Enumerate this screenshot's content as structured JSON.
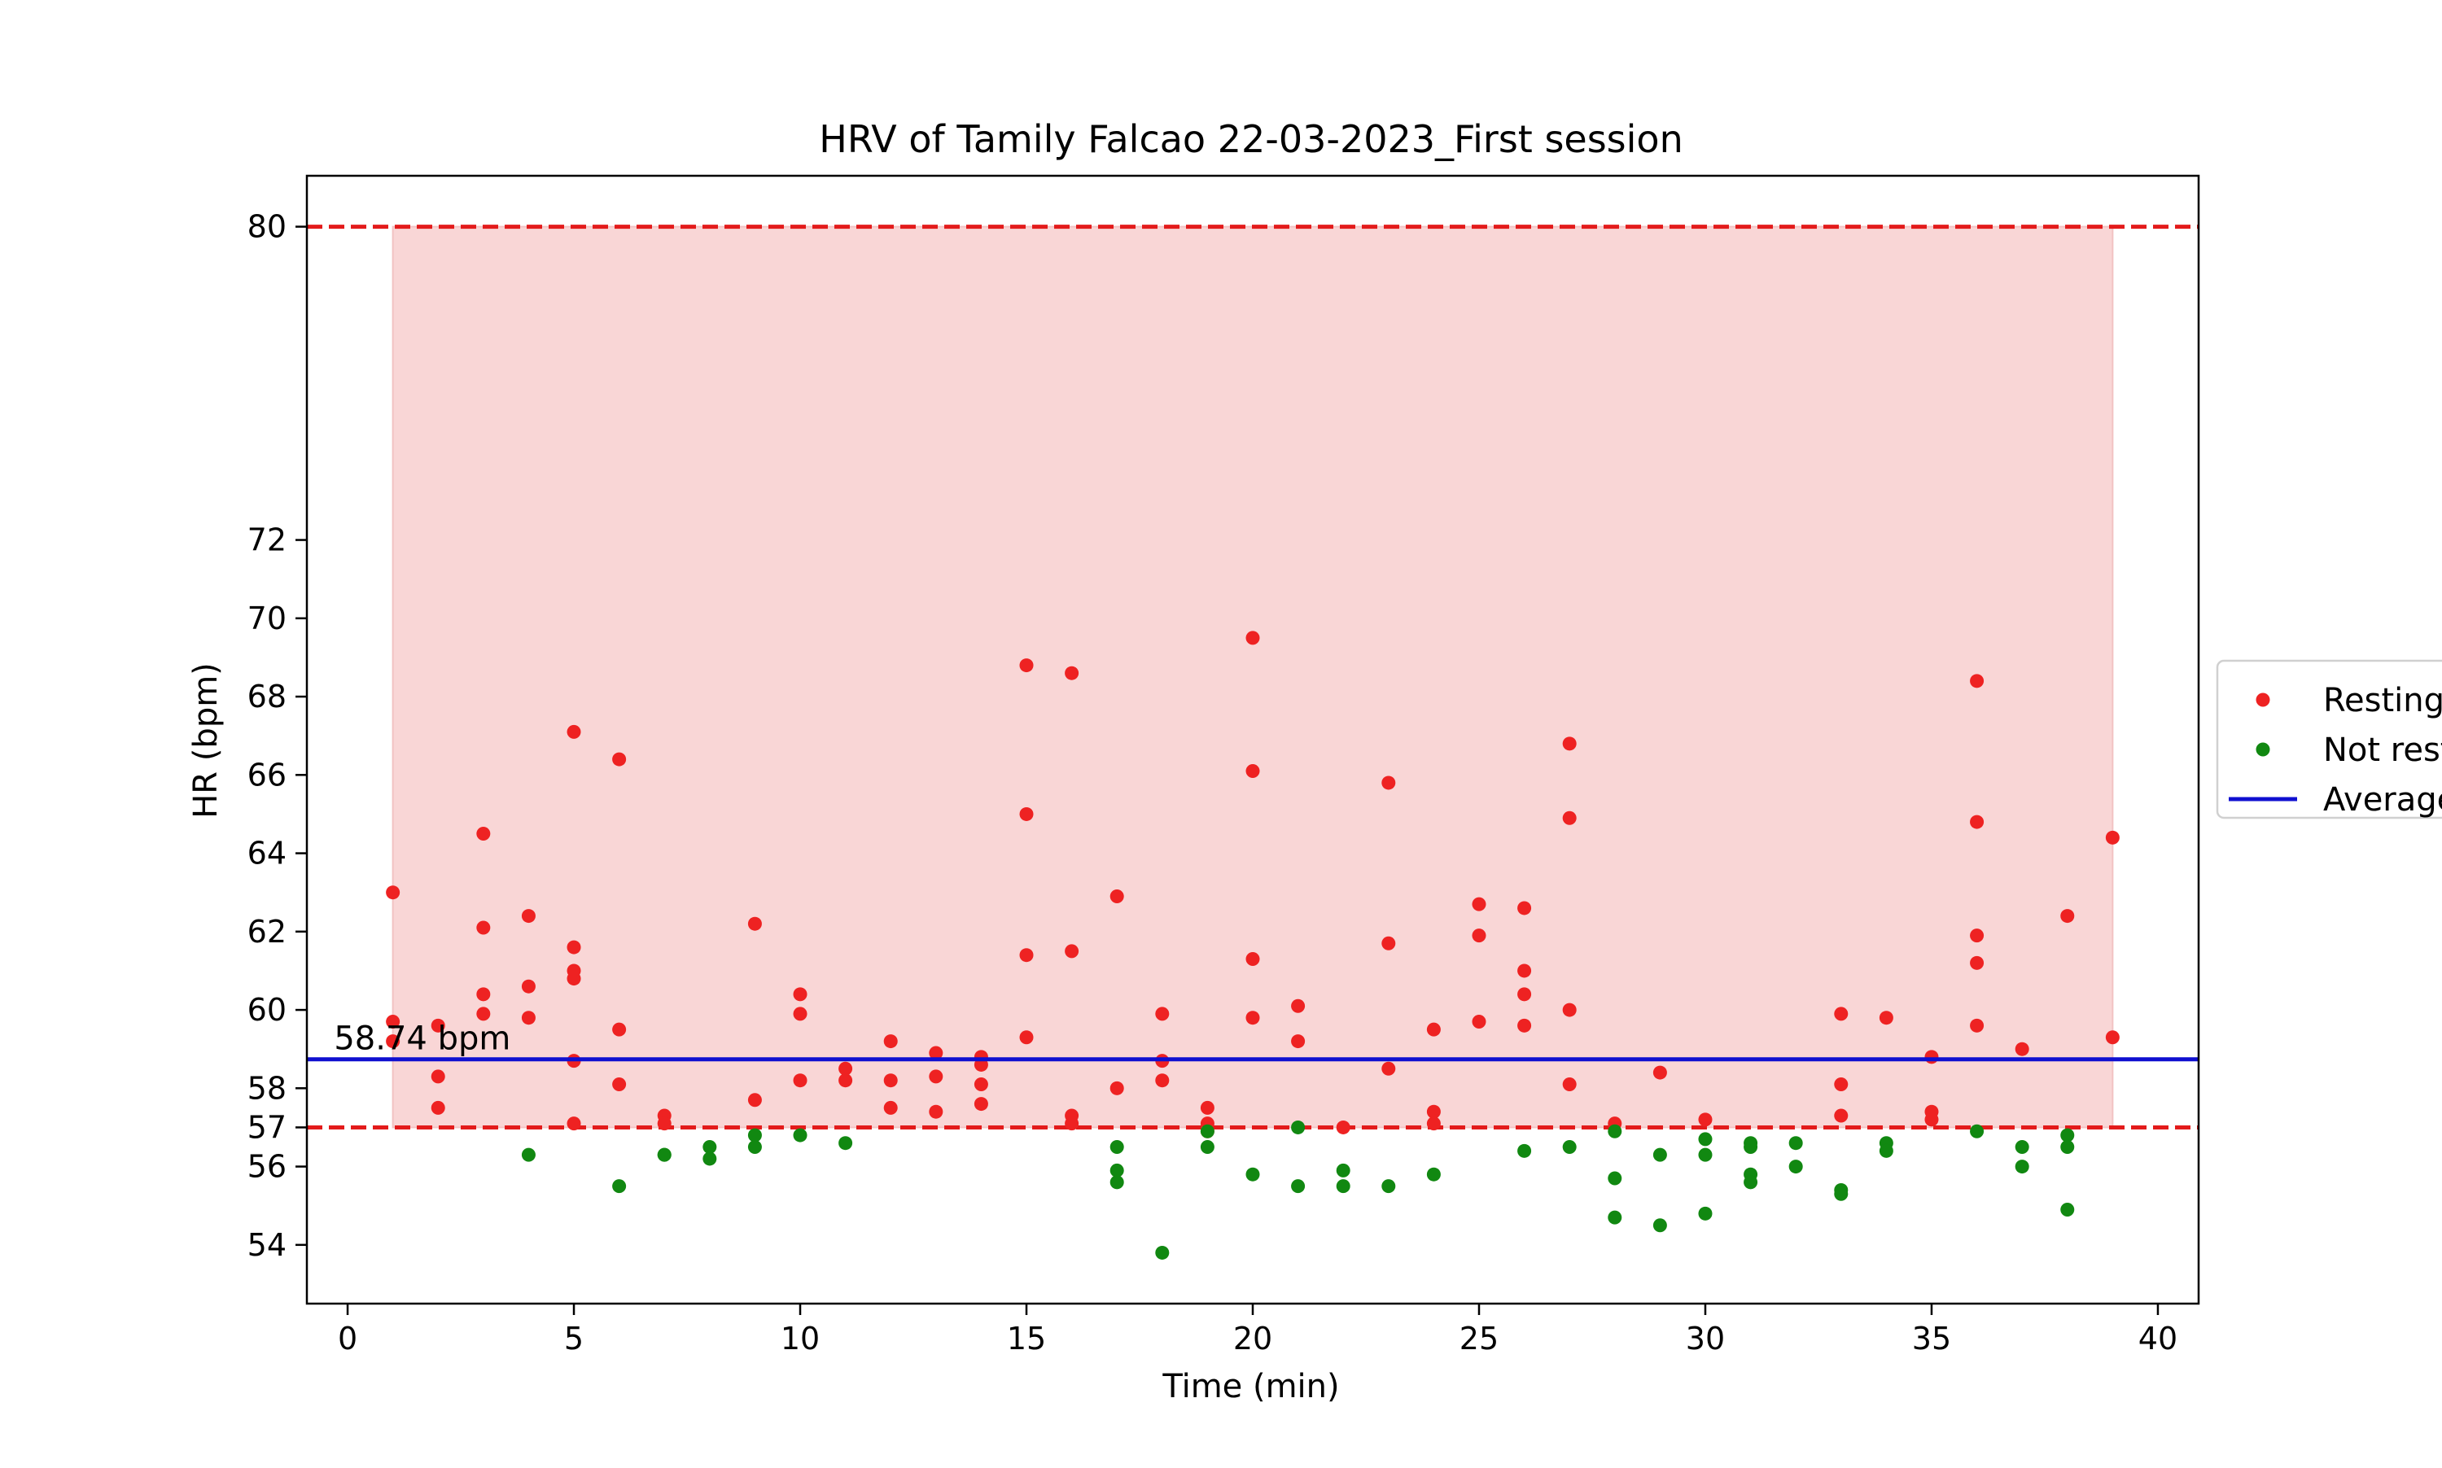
{
  "chart_data": {
    "type": "scatter",
    "title": "HRV of Tamily Falcao 22-03-2023_First session",
    "xlabel": "Time (min)",
    "ylabel": "HR (bpm)",
    "xlim": [
      -0.9,
      40.9
    ],
    "ylim": [
      52.5,
      81.3
    ],
    "xticks": [
      0,
      5,
      10,
      15,
      20,
      25,
      30,
      35,
      40
    ],
    "yticks": [
      54,
      56,
      57,
      58,
      60,
      62,
      64,
      66,
      68,
      70,
      72,
      80
    ],
    "band": {
      "x_start": 1,
      "x_end": 39,
      "y_low": 57,
      "y_high": 80,
      "color": "#f9d6d6"
    },
    "threshold_lines": [
      {
        "y": 80,
        "color": "#e31b1b",
        "style": "dashed"
      },
      {
        "y": 57,
        "color": "#e31b1b",
        "style": "dashed"
      }
    ],
    "average_line": {
      "y": 58.74,
      "label": "58.74 bpm",
      "color": "#1010d0"
    },
    "legend": {
      "placement": "right",
      "entries": [
        {
          "name": "Resting",
          "kind": "marker",
          "color": "#ee2222"
        },
        {
          "name": "Not resting",
          "kind": "marker",
          "color": "#118811"
        },
        {
          "name": "Average",
          "kind": "line",
          "color": "#1010d0"
        }
      ]
    },
    "series": [
      {
        "name": "Resting",
        "color": "#ee2222",
        "points": [
          [
            1,
            63.0
          ],
          [
            1,
            59.7
          ],
          [
            1,
            59.2
          ],
          [
            2,
            59.6
          ],
          [
            2,
            58.3
          ],
          [
            2,
            57.5
          ],
          [
            3,
            64.5
          ],
          [
            3,
            62.1
          ],
          [
            3,
            60.4
          ],
          [
            3,
            59.9
          ],
          [
            4,
            62.4
          ],
          [
            4,
            60.6
          ],
          [
            4,
            59.8
          ],
          [
            5,
            67.1
          ],
          [
            5,
            61.6
          ],
          [
            5,
            61.0
          ],
          [
            5,
            60.8
          ],
          [
            5,
            58.7
          ],
          [
            5,
            57.1
          ],
          [
            6,
            66.4
          ],
          [
            6,
            59.5
          ],
          [
            6,
            58.1
          ],
          [
            7,
            57.3
          ],
          [
            7,
            57.1
          ],
          [
            9,
            62.2
          ],
          [
            9,
            57.7
          ],
          [
            10,
            60.4
          ],
          [
            10,
            59.9
          ],
          [
            10,
            58.2
          ],
          [
            11,
            58.5
          ],
          [
            11,
            58.2
          ],
          [
            12,
            59.2
          ],
          [
            12,
            58.2
          ],
          [
            12,
            57.5
          ],
          [
            13,
            58.9
          ],
          [
            13,
            58.3
          ],
          [
            13,
            57.4
          ],
          [
            14,
            58.8
          ],
          [
            14,
            58.6
          ],
          [
            14,
            58.1
          ],
          [
            14,
            57.6
          ],
          [
            15,
            68.8
          ],
          [
            15,
            65.0
          ],
          [
            15,
            61.4
          ],
          [
            15,
            59.3
          ],
          [
            16,
            68.6
          ],
          [
            16,
            61.5
          ],
          [
            16,
            57.3
          ],
          [
            16,
            57.1
          ],
          [
            17,
            62.9
          ],
          [
            17,
            58.0
          ],
          [
            18,
            59.9
          ],
          [
            18,
            58.7
          ],
          [
            18,
            58.2
          ],
          [
            19,
            57.5
          ],
          [
            19,
            57.1
          ],
          [
            19,
            56.9
          ],
          [
            20,
            69.5
          ],
          [
            20,
            66.1
          ],
          [
            20,
            61.3
          ],
          [
            20,
            59.8
          ],
          [
            21,
            60.1
          ],
          [
            21,
            59.2
          ],
          [
            22,
            57.0
          ],
          [
            23,
            65.8
          ],
          [
            23,
            61.7
          ],
          [
            23,
            58.5
          ],
          [
            24,
            59.5
          ],
          [
            24,
            57.4
          ],
          [
            24,
            57.1
          ],
          [
            25,
            62.7
          ],
          [
            25,
            61.9
          ],
          [
            25,
            59.7
          ],
          [
            26,
            62.6
          ],
          [
            26,
            61.0
          ],
          [
            26,
            60.4
          ],
          [
            26,
            59.6
          ],
          [
            27,
            66.8
          ],
          [
            27,
            64.9
          ],
          [
            27,
            60.0
          ],
          [
            27,
            58.1
          ],
          [
            28,
            57.1
          ],
          [
            29,
            58.4
          ],
          [
            30,
            57.2
          ],
          [
            33,
            59.9
          ],
          [
            33,
            58.1
          ],
          [
            33,
            57.3
          ],
          [
            34,
            59.8
          ],
          [
            35,
            58.8
          ],
          [
            35,
            57.4
          ],
          [
            35,
            57.2
          ],
          [
            36,
            68.4
          ],
          [
            36,
            64.8
          ],
          [
            36,
            61.9
          ],
          [
            36,
            61.2
          ],
          [
            36,
            59.6
          ],
          [
            37,
            59.0
          ],
          [
            38,
            62.4
          ],
          [
            39,
            64.4
          ],
          [
            39,
            59.3
          ]
        ]
      },
      {
        "name": "Not resting",
        "color": "#118811",
        "points": [
          [
            4,
            56.3
          ],
          [
            6,
            55.5
          ],
          [
            7,
            56.3
          ],
          [
            7,
            56.3
          ],
          [
            8,
            56.5
          ],
          [
            8,
            56.2
          ],
          [
            9,
            56.8
          ],
          [
            9,
            56.5
          ],
          [
            10,
            56.8
          ],
          [
            11,
            56.6
          ],
          [
            17,
            56.5
          ],
          [
            17,
            55.9
          ],
          [
            17,
            55.6
          ],
          [
            18,
            53.8
          ],
          [
            19,
            56.9
          ],
          [
            19,
            56.5
          ],
          [
            20,
            55.8
          ],
          [
            21,
            57.0
          ],
          [
            21,
            55.5
          ],
          [
            22,
            55.9
          ],
          [
            22,
            55.5
          ],
          [
            23,
            55.5
          ],
          [
            24,
            55.8
          ],
          [
            26,
            56.4
          ],
          [
            27,
            56.5
          ],
          [
            28,
            56.9
          ],
          [
            28,
            55.7
          ],
          [
            28,
            54.7
          ],
          [
            29,
            56.3
          ],
          [
            29,
            54.5
          ],
          [
            30,
            56.7
          ],
          [
            30,
            56.3
          ],
          [
            30,
            54.8
          ],
          [
            31,
            56.6
          ],
          [
            31,
            56.5
          ],
          [
            31,
            55.8
          ],
          [
            31,
            55.6
          ],
          [
            32,
            56.6
          ],
          [
            32,
            56.0
          ],
          [
            33,
            55.4
          ],
          [
            33,
            55.3
          ],
          [
            34,
            56.6
          ],
          [
            34,
            56.4
          ],
          [
            36,
            56.9
          ],
          [
            37,
            56.5
          ],
          [
            37,
            56.0
          ],
          [
            38,
            56.8
          ],
          [
            38,
            56.5
          ],
          [
            38,
            54.9
          ]
        ]
      }
    ]
  }
}
